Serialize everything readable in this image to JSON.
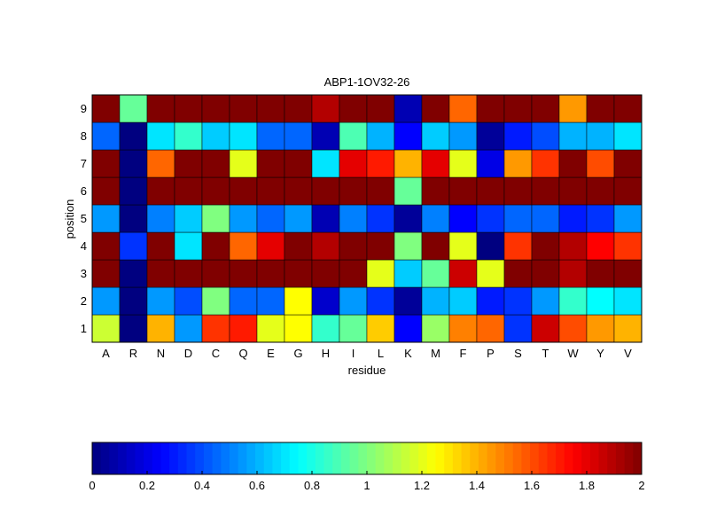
{
  "chart_data": {
    "type": "heatmap",
    "title": "ABP1-1OV32-26",
    "xlabel": "residue",
    "ylabel": "position",
    "x_categories": [
      "A",
      "R",
      "N",
      "D",
      "C",
      "Q",
      "E",
      "G",
      "H",
      "I",
      "L",
      "K",
      "M",
      "F",
      "P",
      "S",
      "T",
      "W",
      "Y",
      "V"
    ],
    "y_categories": [
      "1",
      "2",
      "3",
      "4",
      "5",
      "6",
      "7",
      "8",
      "9"
    ],
    "colormap": "jet",
    "clim": [
      0,
      2
    ],
    "colorbar": {
      "location": "bottom",
      "ticks": [
        0,
        0.2,
        0.4,
        0.6,
        0.8,
        1,
        1.2,
        1.4,
        1.6,
        1.8,
        2
      ],
      "tick_labels": [
        "0",
        "0.2",
        "0.4",
        "0.6",
        "0.8",
        "1",
        "1.2",
        "1.4",
        "1.6",
        "1.8",
        "2"
      ]
    },
    "values": [
      [
        1.15,
        0.0,
        1.4,
        0.55,
        1.65,
        1.7,
        1.2,
        1.25,
        0.85,
        0.95,
        1.35,
        0.25,
        1.05,
        1.5,
        1.55,
        0.35,
        1.85,
        1.6,
        1.45,
        1.4
      ],
      [
        0.55,
        0.0,
        0.55,
        0.4,
        1.0,
        0.45,
        0.45,
        1.25,
        0.15,
        0.55,
        0.35,
        0.05,
        0.6,
        0.65,
        0.3,
        0.35,
        0.55,
        0.85,
        0.75,
        0.7
      ],
      [
        2.0,
        0.0,
        2.0,
        2.0,
        2.0,
        2.0,
        2.0,
        2.0,
        2.0,
        2.0,
        1.2,
        0.65,
        0.95,
        1.85,
        1.2,
        2.0,
        2.0,
        1.9,
        2.0,
        2.0
      ],
      [
        2.0,
        0.35,
        2.0,
        0.7,
        2.0,
        1.55,
        1.8,
        2.0,
        1.9,
        2.0,
        2.0,
        1.0,
        2.0,
        1.2,
        0.0,
        1.65,
        2.0,
        1.9,
        1.75,
        1.65
      ],
      [
        0.55,
        0.0,
        0.5,
        0.65,
        1.0,
        0.55,
        0.45,
        0.55,
        0.1,
        0.5,
        0.35,
        0.05,
        0.5,
        0.25,
        0.35,
        0.45,
        0.45,
        0.3,
        0.35,
        0.55
      ],
      [
        2.0,
        0.0,
        2.0,
        2.0,
        2.0,
        2.0,
        2.0,
        2.0,
        2.0,
        2.0,
        2.0,
        0.95,
        2.0,
        2.0,
        2.0,
        2.0,
        2.0,
        2.0,
        2.0,
        2.0
      ],
      [
        2.0,
        0.0,
        1.55,
        2.0,
        2.0,
        1.2,
        2.0,
        2.0,
        0.7,
        1.8,
        1.7,
        1.4,
        1.8,
        1.2,
        0.2,
        1.45,
        1.65,
        2.0,
        1.6,
        2.0
      ],
      [
        0.45,
        0.0,
        0.7,
        0.85,
        0.65,
        0.7,
        0.45,
        0.45,
        0.1,
        0.9,
        0.6,
        0.25,
        0.65,
        0.55,
        0.05,
        0.3,
        0.4,
        0.6,
        0.6,
        0.7
      ],
      [
        2.0,
        0.95,
        2.0,
        2.0,
        2.0,
        2.0,
        2.0,
        2.0,
        1.9,
        2.0,
        2.0,
        0.1,
        2.0,
        1.55,
        2.0,
        2.0,
        2.0,
        1.45,
        2.0,
        2.0
      ]
    ]
  }
}
